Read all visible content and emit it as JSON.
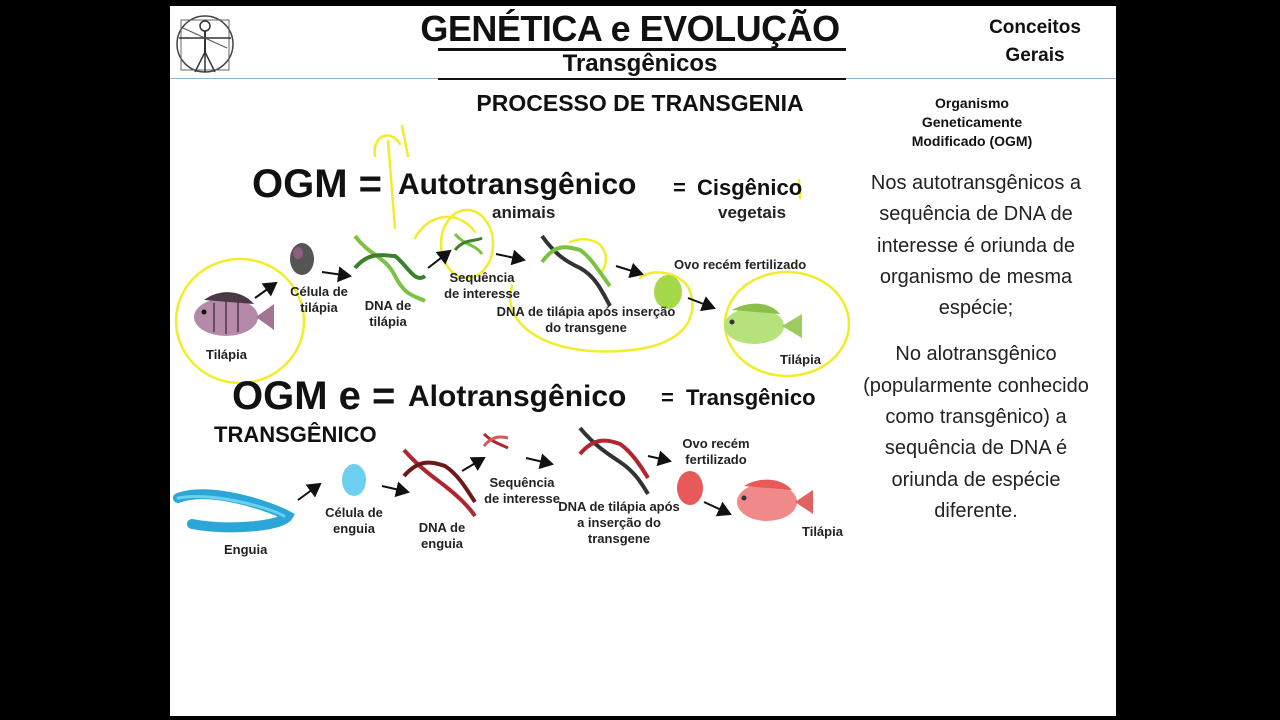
{
  "header": {
    "title": "GENÉTICA e EVOLUÇÃO",
    "subtitle": "Transgênicos",
    "concept_line1": "Conceitos",
    "concept_line2": "Gerais"
  },
  "section_title": "PROCESSO DE TRANSGENIA",
  "ogm_definition": [
    "Organismo",
    "Geneticamente",
    "Modificado (OGM)"
  ],
  "auto_row": {
    "ogm": "OGM =",
    "auto": "Autotransgênico",
    "eq": "=",
    "cis": "Cisgênico",
    "animals": "animais",
    "plants": "vegetais",
    "tilapia_left": "Tilápia",
    "cell": "Célula de tilápia",
    "dna": "DNA de tilápia",
    "sequence": "Sequência de interesse",
    "dna_after": "DNA de tilápia após inserção do transgene",
    "egg": "Ovo recém fertilizado",
    "tilapia_right": "Tilápia"
  },
  "alo_row": {
    "ogm": "OGM e =",
    "alo": "Alotransgênico",
    "eq": "=",
    "transgenic": "Transgênico",
    "transgenic_caps": "TRANSGÊNICO",
    "eel": "Enguia",
    "cell": "Célula de enguia",
    "dna": "DNA de enguia",
    "sequence": "Sequência de interesse",
    "dna_after": "DNA de tilápia após a inserção do transgene",
    "egg": "Ovo recém fertilizado",
    "tilapia": "Tilápia"
  },
  "side_text": {
    "p1": "Nos autotransgênicos a sequência de DNA de interesse é oriunda de organismo de mesma espécie;",
    "p2": "No alotransgênico (popularmente conhecido como transgênico) a sequência de DNA é oriunda de espécie diferente."
  },
  "colors": {
    "highlight": "#f2ec2a",
    "green_dna": "#7cc242",
    "red_dna": "#b0262e",
    "eel": "#2aa6d8",
    "fish_pink": "#e85a5a"
  }
}
